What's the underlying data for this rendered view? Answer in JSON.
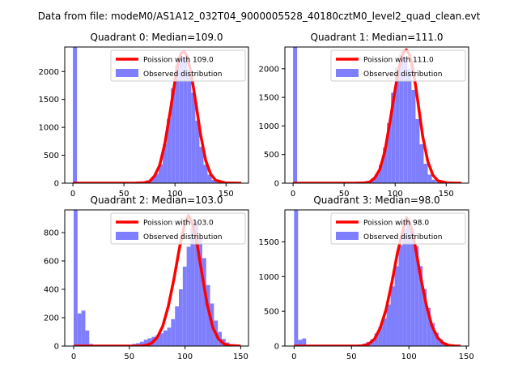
{
  "figure": {
    "suptitle": "Data from file: modeM0/AS1A12_032T04_9000005528_40180cztM0_level2_quad_clean.evt"
  },
  "colors": {
    "observed": "#7f7ffe",
    "poisson": "#ff0000",
    "axis": "#000000",
    "legend_border": "#cccccc"
  },
  "chart_data": [
    {
      "type": "bar",
      "title": "Quadrant 0: Median=109.0",
      "xlim": [
        -8,
        172
      ],
      "ylim": [
        0,
        2440
      ],
      "xticks": [
        0,
        50,
        100,
        150
      ],
      "yticks": [
        0,
        500,
        1000,
        1500,
        2000
      ],
      "legend": {
        "position": "top-right",
        "entries": [
          "Poission with 109.0",
          "Observed distribution"
        ]
      },
      "bin_width": 4,
      "histogram": {
        "x": [
          0,
          56,
          60,
          64,
          68,
          72,
          76,
          80,
          84,
          88,
          92,
          96,
          100,
          104,
          108,
          112,
          116,
          120,
          124,
          128,
          132,
          136,
          140,
          144,
          148
        ],
        "values": [
          2440,
          5,
          10,
          15,
          20,
          50,
          90,
          170,
          340,
          700,
          1150,
          1700,
          2120,
          2280,
          2240,
          2030,
          1620,
          1120,
          650,
          330,
          150,
          60,
          20,
          5,
          2
        ]
      },
      "poisson_curve": {
        "x": [
          0,
          60,
          70,
          75,
          80,
          85,
          90,
          95,
          100,
          103,
          106,
          109,
          112,
          115,
          118,
          121,
          125,
          130,
          135,
          140,
          150,
          165
        ],
        "y": [
          0,
          0,
          10,
          30,
          130,
          320,
          700,
          1250,
          1830,
          2150,
          2330,
          2360,
          2270,
          2040,
          1720,
          1370,
          880,
          410,
          160,
          50,
          3,
          0
        ]
      }
    },
    {
      "type": "bar",
      "title": "Quadrant 1: Median=111.0",
      "xlim": [
        -8,
        172
      ],
      "ylim": [
        0,
        2380
      ],
      "xticks": [
        0,
        50,
        100,
        150
      ],
      "yticks": [
        0,
        500,
        1000,
        1500,
        2000
      ],
      "legend": {
        "position": "top-right",
        "entries": [
          "Poission with 111.0",
          "Observed distribution"
        ]
      },
      "bin_width": 4,
      "histogram": {
        "x": [
          0,
          60,
          64,
          68,
          72,
          76,
          80,
          84,
          88,
          92,
          96,
          100,
          104,
          108,
          112,
          116,
          120,
          124,
          128,
          132,
          136,
          140,
          144,
          148
        ],
        "values": [
          2380,
          5,
          10,
          20,
          40,
          80,
          150,
          320,
          620,
          1050,
          1580,
          2020,
          2250,
          2200,
          2000,
          1630,
          1120,
          680,
          340,
          150,
          60,
          20,
          6,
          2
        ]
      },
      "poisson_curve": {
        "x": [
          0,
          60,
          70,
          75,
          80,
          85,
          90,
          95,
          100,
          104,
          108,
          111,
          114,
          117,
          120,
          123,
          127,
          132,
          137,
          142,
          152,
          165
        ],
        "y": [
          0,
          0,
          5,
          20,
          90,
          240,
          560,
          1080,
          1640,
          2040,
          2290,
          2330,
          2250,
          2030,
          1710,
          1330,
          820,
          380,
          140,
          40,
          3,
          0
        ]
      }
    },
    {
      "type": "bar",
      "title": "Quadrant 2: Median=103.0",
      "xlim": [
        -8,
        157
      ],
      "ylim": [
        0,
        960
      ],
      "xticks": [
        0,
        50,
        100,
        150
      ],
      "yticks": [
        0,
        200,
        400,
        600,
        800
      ],
      "legend": {
        "position": "top-right",
        "entries": [
          "Poission with 103.0",
          "Observed distribution"
        ]
      },
      "bin_width": 3.5,
      "histogram": {
        "x": [
          0,
          3.5,
          7,
          10.5,
          14,
          52.5,
          56,
          59.5,
          63,
          66.5,
          70,
          73.5,
          77,
          80.5,
          84,
          87.5,
          91,
          94.5,
          98,
          101.5,
          105,
          108.5,
          112,
          115.5,
          119,
          122.5,
          126,
          129.5,
          133,
          136.5,
          140,
          143.5
        ],
        "values": [
          960,
          230,
          250,
          110,
          15,
          15,
          20,
          30,
          45,
          55,
          65,
          75,
          90,
          110,
          130,
          190,
          280,
          400,
          560,
          700,
          830,
          880,
          760,
          620,
          430,
          300,
          180,
          100,
          50,
          25,
          10,
          5
        ]
      },
      "poisson_curve": {
        "x": [
          0,
          60,
          65,
          70,
          75,
          80,
          85,
          90,
          95,
          100,
          103,
          106,
          110,
          115,
          120,
          125,
          130,
          135,
          140,
          150
        ],
        "y": [
          0,
          0,
          5,
          20,
          60,
          140,
          280,
          470,
          690,
          870,
          920,
          880,
          760,
          520,
          290,
          130,
          50,
          15,
          4,
          0
        ]
      }
    },
    {
      "type": "bar",
      "title": "Quadrant 3: Median=98.0",
      "xlim": [
        -8,
        152
      ],
      "ylim": [
        0,
        1960
      ],
      "xticks": [
        0,
        50,
        100,
        150
      ],
      "yticks": [
        0,
        500,
        1000,
        1500
      ],
      "legend": {
        "position": "top-right",
        "entries": [
          "Poission with 98.0",
          "Observed distribution"
        ]
      },
      "bin_width": 3.5,
      "histogram": {
        "x": [
          0,
          3.5,
          7,
          49,
          52.5,
          56,
          59.5,
          63,
          66.5,
          70,
          73.5,
          77,
          80.5,
          84,
          87.5,
          91,
          94.5,
          98,
          101.5,
          105,
          108.5,
          112,
          115.5,
          119,
          122.5,
          126,
          129.5,
          133,
          136.5
        ],
        "values": [
          1960,
          90,
          110,
          5,
          10,
          20,
          35,
          60,
          100,
          180,
          280,
          400,
          600,
          860,
          1150,
          1450,
          1680,
          1780,
          1680,
          1440,
          1150,
          820,
          550,
          330,
          190,
          100,
          50,
          20,
          8
        ]
      },
      "poisson_curve": {
        "x": [
          0,
          55,
          60,
          65,
          70,
          75,
          80,
          85,
          90,
          95,
          98,
          101,
          105,
          110,
          115,
          120,
          125,
          130,
          135,
          140,
          145
        ],
        "y": [
          0,
          0,
          5,
          30,
          100,
          260,
          520,
          900,
          1340,
          1680,
          1850,
          1760,
          1480,
          1010,
          600,
          290,
          120,
          40,
          10,
          2,
          0
        ]
      }
    }
  ]
}
